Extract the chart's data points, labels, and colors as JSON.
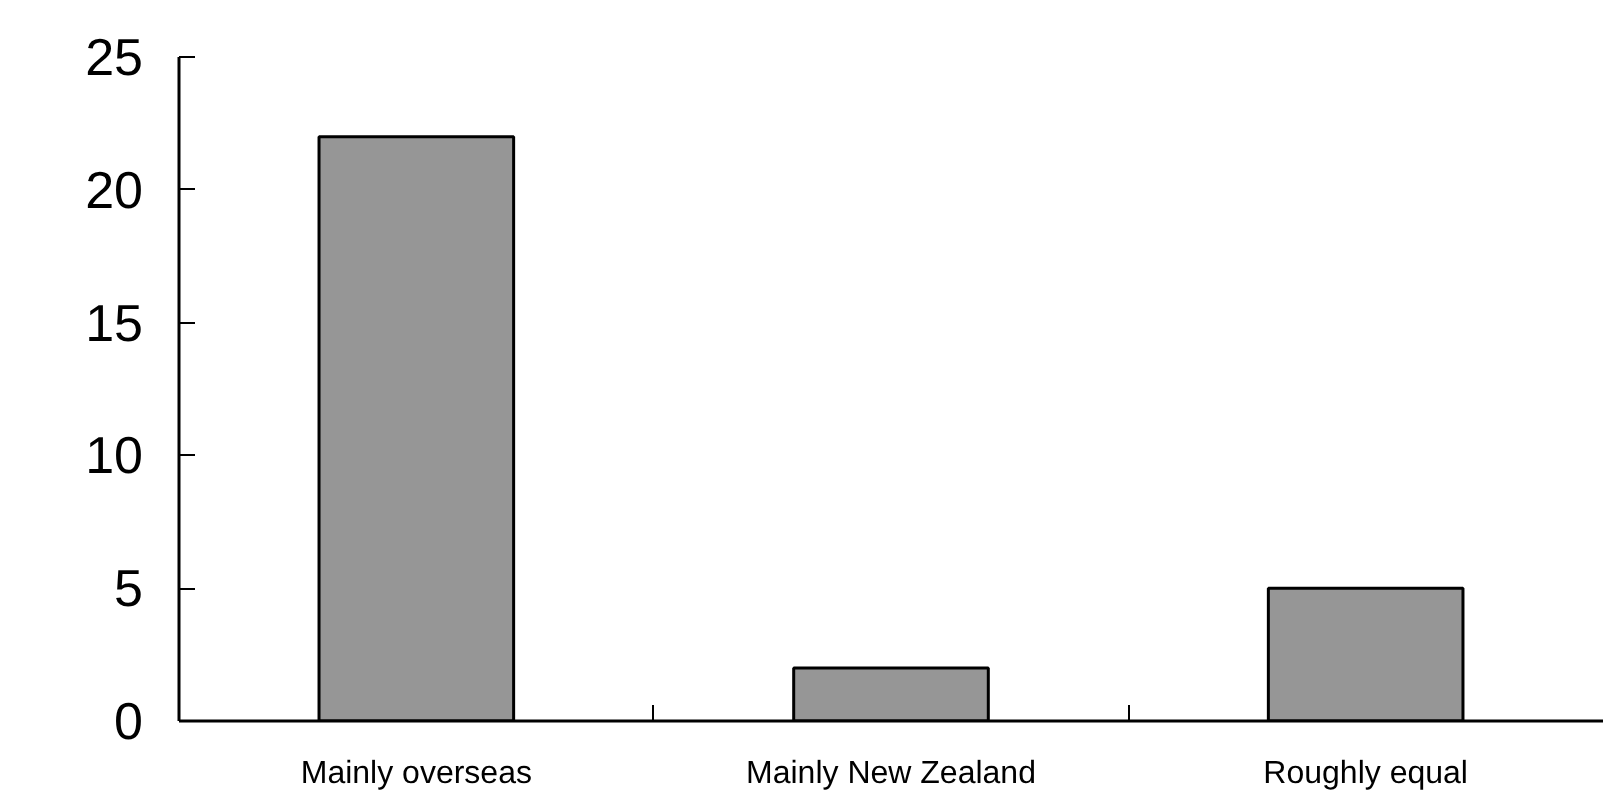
{
  "chart_data": {
    "type": "bar",
    "categories": [
      "Mainly overseas",
      "Mainly New Zealand",
      "Roughly equal"
    ],
    "values": [
      22,
      2,
      5
    ],
    "color": "#969696",
    "ylim": [
      0,
      25
    ],
    "yticks": [
      0,
      5,
      10,
      15,
      20,
      25
    ],
    "grid": false
  }
}
